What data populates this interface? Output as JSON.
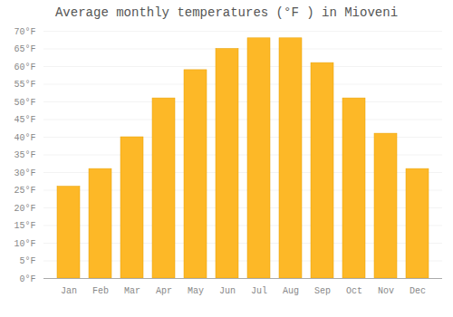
{
  "chart_data": {
    "type": "bar",
    "title": "Average monthly temperatures (°F ) in Mioveni",
    "categories": [
      "Jan",
      "Feb",
      "Mar",
      "Apr",
      "May",
      "Jun",
      "Jul",
      "Aug",
      "Sep",
      "Oct",
      "Nov",
      "Dec"
    ],
    "values": [
      26,
      31,
      40,
      51,
      59,
      65,
      68,
      68,
      61,
      51,
      41,
      31
    ],
    "color": "#FDB827",
    "ylim": [
      0,
      70
    ],
    "yticks": [
      {
        "value": 0,
        "label": "0°F"
      },
      {
        "value": 5,
        "label": "5°F"
      },
      {
        "value": 10,
        "label": "10°F"
      },
      {
        "value": 15,
        "label": "15°F"
      },
      {
        "value": 20,
        "label": "20°F"
      },
      {
        "value": 25,
        "label": "25°F"
      },
      {
        "value": 30,
        "label": "30°F"
      },
      {
        "value": 35,
        "label": "35°F"
      },
      {
        "value": 40,
        "label": "40°F"
      },
      {
        "value": 45,
        "label": "45°F"
      },
      {
        "value": 50,
        "label": "50°F"
      },
      {
        "value": 55,
        "label": "55°F"
      },
      {
        "value": 60,
        "label": "60°F"
      },
      {
        "value": 65,
        "label": "65°F"
      },
      {
        "value": 70,
        "label": "70°F"
      }
    ],
    "grid": true
  }
}
